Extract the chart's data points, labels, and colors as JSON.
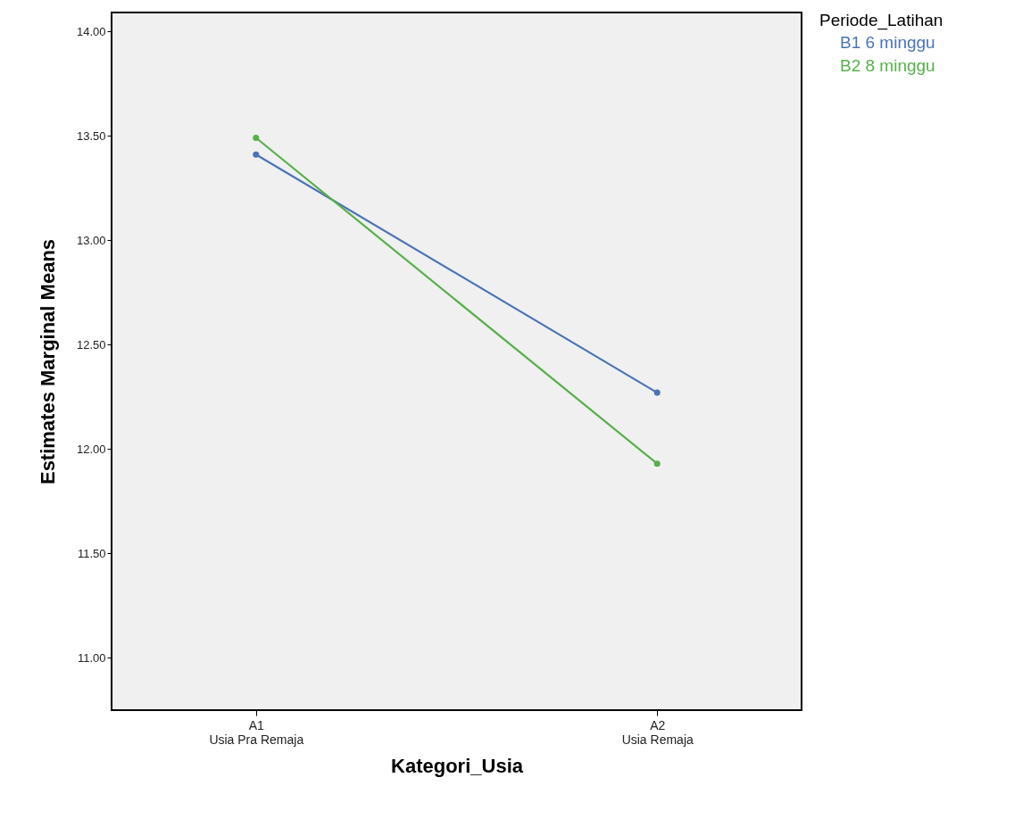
{
  "chart_data": {
    "type": "line",
    "xlabel": "Kategori_Usia",
    "ylabel": "Estimates Marginal Means",
    "legend_title": "Periode_Latihan",
    "categories": [
      "A1\nUsia Pra Remaja",
      "A2\nUsia Remaja"
    ],
    "series": [
      {
        "name": "B1 6 minggu",
        "color": "#4a74b5",
        "values": [
          13.41,
          12.27
        ]
      },
      {
        "name": "B2 8 minggu",
        "color": "#57b04a",
        "values": [
          13.49,
          11.93
        ]
      }
    ],
    "ylim": [
      10.75,
      14.09
    ],
    "yticks": [
      {
        "value": 11,
        "label": "11.00"
      },
      {
        "value": 11.5,
        "label": "11.50"
      },
      {
        "value": 12,
        "label": "12.00"
      },
      {
        "value": 12.5,
        "label": "12.50"
      },
      {
        "value": 13,
        "label": "13.00"
      },
      {
        "value": 13.5,
        "label": "13.50"
      },
      {
        "value": 14,
        "label": "14.00"
      }
    ],
    "grid": false,
    "legend": "top right",
    "marker": "circle",
    "line_style": "solid"
  }
}
